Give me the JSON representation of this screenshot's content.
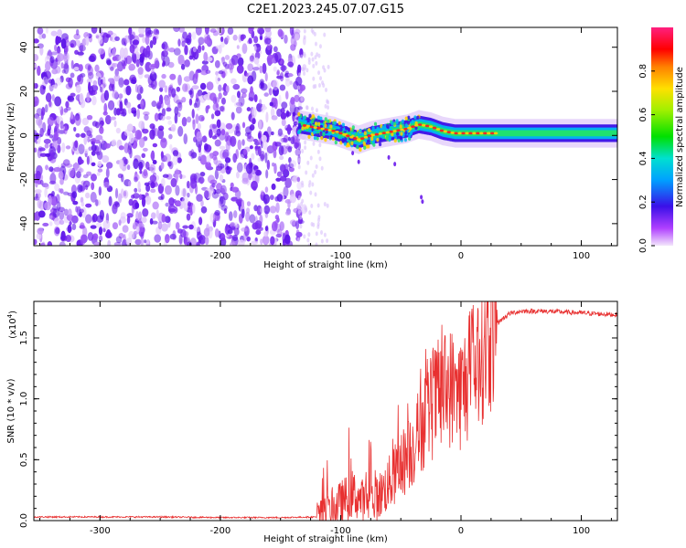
{
  "title": "C2E1.2023.245.07.07.G15",
  "chart_data": [
    {
      "type": "heatmap",
      "title": "C2E1.2023.245.07.07.G15",
      "xlabel": "Height of straight line (km)",
      "ylabel": "Frequency (Hz)",
      "xlim": [
        -355,
        130
      ],
      "ylim": [
        -50,
        49
      ],
      "xticks": [
        -300,
        -200,
        -100,
        0,
        100
      ],
      "xtick_labels": [
        "-300",
        "-200",
        "-100",
        "0",
        "100"
      ],
      "yticks": [
        -40,
        -20,
        0,
        20,
        40
      ],
      "ytick_labels": [
        "-40",
        "-20",
        "0",
        "20",
        "40"
      ],
      "noise_region_x": [
        -355,
        -130
      ],
      "signal_track": {
        "x": [
          -135,
          -125,
          -115,
          -105,
          -95,
          -85,
          -75,
          -65,
          -55,
          -45,
          -35,
          -25,
          -15,
          -5,
          5,
          15,
          30,
          60,
          90,
          130
        ],
        "freq": [
          5,
          4,
          3,
          2,
          0,
          -2,
          0,
          1,
          2,
          3,
          5,
          4,
          2,
          1,
          1,
          1,
          1,
          1,
          1,
          1
        ]
      },
      "colorbar": {
        "label": "Normalized spectral amplitude",
        "range": [
          0.0,
          1.0
        ],
        "ticks": [
          0.0,
          0.2,
          0.4,
          0.6,
          0.8
        ],
        "tick_labels": [
          "0.0",
          "0.2",
          "0.4",
          "0.6",
          "0.8"
        ],
        "colormap": "rainbow (white-violet-blue-cyan-green-yellow-red-magenta)"
      },
      "grid": false
    },
    {
      "type": "line",
      "xlabel": "Height of straight line (km)",
      "ylabel": "SNR (10 * v/v)",
      "yscale_label": "(x10",
      "yscale_exp": "4",
      "yscale_suffix": ")",
      "xlim": [
        -355,
        130
      ],
      "ylim": [
        0.0,
        1.8
      ],
      "xticks": [
        -300,
        -200,
        -100,
        0,
        100
      ],
      "xtick_labels": [
        "-300",
        "-200",
        "-100",
        "0",
        "100"
      ],
      "yticks": [
        0.0,
        0.5,
        1.0,
        1.5
      ],
      "ytick_labels": [
        "0.0",
        "0.5",
        "1.0",
        "1.5"
      ],
      "series": [
        {
          "color": "#e83030",
          "x": [
            -355,
            -300,
            -250,
            -200,
            -150,
            -120,
            -110,
            -100,
            -90,
            -80,
            -70,
            -60,
            -50,
            -40,
            -30,
            -20,
            -10,
            0,
            10,
            20,
            30,
            40,
            50,
            70,
            90,
            110,
            130
          ],
          "y": [
            0.03,
            0.03,
            0.03,
            0.025,
            0.025,
            0.03,
            0.06,
            0.15,
            0.22,
            0.15,
            0.18,
            0.3,
            0.45,
            0.6,
            0.85,
            1.0,
            1.1,
            1.05,
            1.25,
            1.45,
            1.62,
            1.7,
            1.72,
            1.72,
            1.71,
            1.7,
            1.69
          ]
        }
      ],
      "grid": false
    }
  ]
}
